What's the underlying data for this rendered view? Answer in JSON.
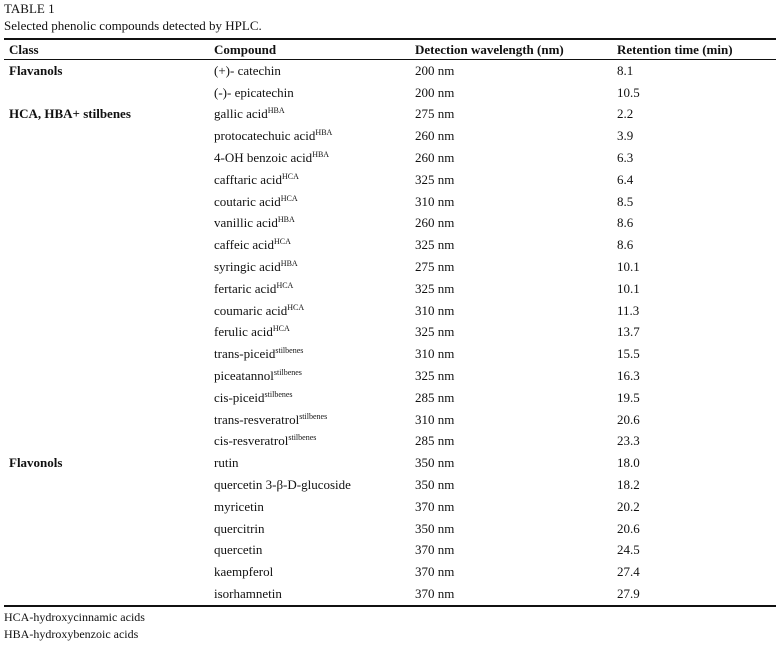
{
  "caption": {
    "label": "TABLE 1",
    "title": "Selected phenolic compounds detected by HPLC."
  },
  "headers": [
    "Class",
    "Compound",
    "Detection wavelength (nm)",
    "Retention time (min)"
  ],
  "rows": [
    {
      "cls": "Flavanols",
      "compound": "(+)- catechin",
      "sup": "",
      "wavelength": "200 nm",
      "rt": "8.1"
    },
    {
      "cls": "",
      "compound": "(-)- epicatechin",
      "sup": "",
      "wavelength": "200 nm",
      "rt": "10.5"
    },
    {
      "cls": "HCA, HBA+ stilbenes",
      "compound": "gallic acid",
      "sup": "HBA",
      "wavelength": "275 nm",
      "rt": "2.2"
    },
    {
      "cls": "",
      "compound": "protocatechuic acid",
      "sup": "HBA",
      "wavelength": "260 nm",
      "rt": "3.9"
    },
    {
      "cls": "",
      "compound": "4-OH benzoic acid",
      "sup": "HBA",
      "wavelength": "260 nm",
      "rt": "6.3"
    },
    {
      "cls": "",
      "compound": "cafftaric acid",
      "sup": "HCA",
      "wavelength": "325 nm",
      "rt": "6.4"
    },
    {
      "cls": "",
      "compound": "coutaric acid",
      "sup": "HCA",
      "wavelength": "310 nm",
      "rt": "8.5"
    },
    {
      "cls": "",
      "compound": "vanillic acid",
      "sup": "HBA",
      "wavelength": "260 nm",
      "rt": "8.6"
    },
    {
      "cls": "",
      "compound": "caffeic acid",
      "sup": "HCA",
      "wavelength": "325 nm",
      "rt": "8.6"
    },
    {
      "cls": "",
      "compound": "syringic acid",
      "sup": "HBA",
      "wavelength": "275 nm",
      "rt": "10.1"
    },
    {
      "cls": "",
      "compound": "fertaric acid",
      "sup": "HCA",
      "wavelength": "325 nm",
      "rt": "10.1"
    },
    {
      "cls": "",
      "compound": "coumaric acid",
      "sup": "HCA",
      "wavelength": "310 nm",
      "rt": "11.3"
    },
    {
      "cls": "",
      "compound": "ferulic acid",
      "sup": "HCA",
      "wavelength": "325 nm",
      "rt": "13.7"
    },
    {
      "cls": "",
      "compound": "trans-piceid",
      "sup": "stilbenes",
      "wavelength": "310 nm",
      "rt": "15.5"
    },
    {
      "cls": "",
      "compound": "piceatannol",
      "sup": "stilbenes",
      "wavelength": "325 nm",
      "rt": "16.3"
    },
    {
      "cls": "",
      "compound": "cis-piceid",
      "sup": "stilbenes",
      "wavelength": "285 nm",
      "rt": "19.5"
    },
    {
      "cls": "",
      "compound": "trans-resveratrol",
      "sup": "stilbenes",
      "wavelength": "310 nm",
      "rt": "20.6"
    },
    {
      "cls": "",
      "compound": "cis-resveratrol",
      "sup": "stilbenes",
      "wavelength": "285 nm",
      "rt": "23.3"
    },
    {
      "cls": "Flavonols",
      "compound": "rutin",
      "sup": "",
      "wavelength": "350 nm",
      "rt": "18.0"
    },
    {
      "cls": "",
      "compound": "quercetin 3-β-D-glucoside",
      "sup": "",
      "wavelength": "350 nm",
      "rt": "18.2"
    },
    {
      "cls": "",
      "compound": "myricetin",
      "sup": "",
      "wavelength": "370 nm",
      "rt": "20.2"
    },
    {
      "cls": "",
      "compound": "quercitrin",
      "sup": "",
      "wavelength": "350 nm",
      "rt": "20.6"
    },
    {
      "cls": "",
      "compound": "quercetin",
      "sup": "",
      "wavelength": "370 nm",
      "rt": "24.5"
    },
    {
      "cls": "",
      "compound": "kaempferol",
      "sup": "",
      "wavelength": "370 nm",
      "rt": "27.4"
    },
    {
      "cls": "",
      "compound": "isorhamnetin",
      "sup": "",
      "wavelength": "370 nm",
      "rt": "27.9"
    }
  ],
  "footnotes": [
    "HCA-hydroxycinnamic acids",
    "HBA-hydroxybenzoic acids"
  ]
}
